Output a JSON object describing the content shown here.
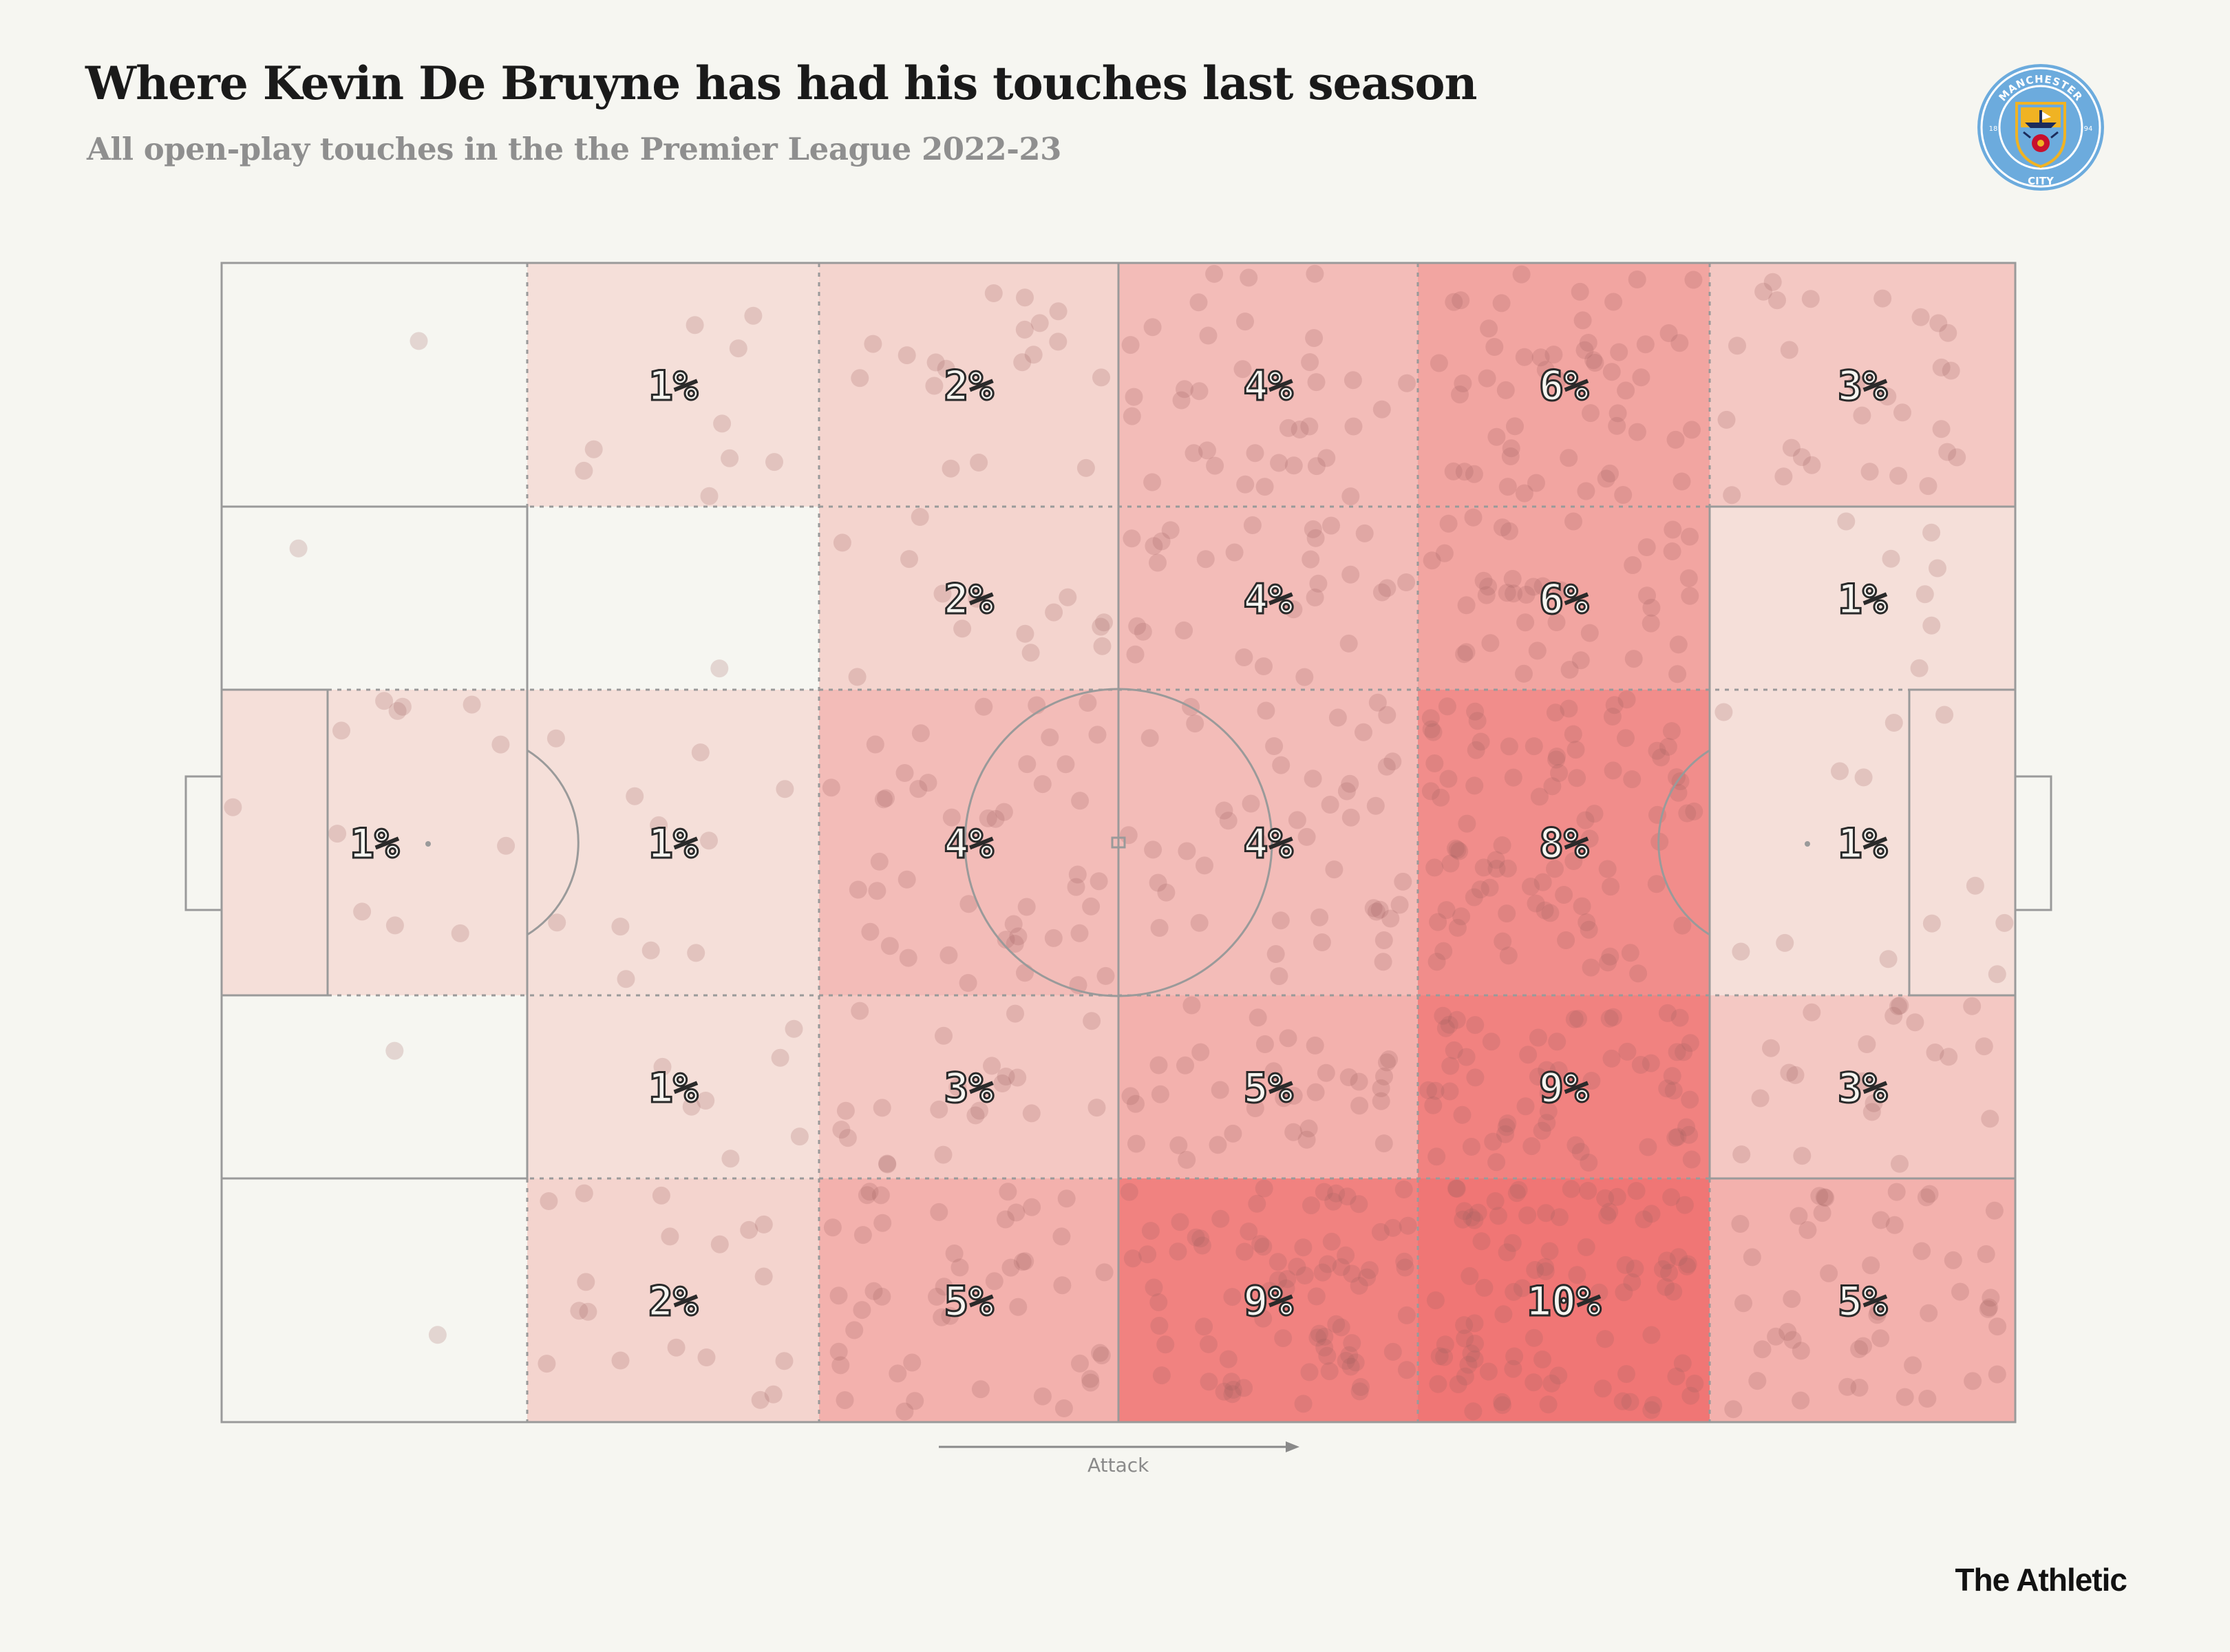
{
  "header": {
    "title": "Where Kevin De Bruyne has had his touches last season",
    "subtitle": "All open-play touches in the the Premier League 2022-23"
  },
  "crest": {
    "top_text": "MANCHESTER",
    "bottom_text": "CITY",
    "year_left": "18",
    "year_right": "94",
    "colors": {
      "ring": "#6cabdd",
      "navy": "#1c2c5b",
      "gold": "#f0b323",
      "red": "#c8102e"
    }
  },
  "attack_label": "Attack",
  "brand": "The Athletic",
  "colors": {
    "background": "#f6f6f1",
    "zone_low": "#f5ebe4",
    "zone_high": "#f07675",
    "dots": "#a06060",
    "lines": "#9a9a9a"
  },
  "chart_data": {
    "type": "heatmap",
    "description_units": "percent of open-play touches per pitch zone",
    "columns": 6,
    "rows": 5,
    "zones": [
      {
        "col": 0,
        "row": 0,
        "value": 0,
        "label": ""
      },
      {
        "col": 1,
        "row": 0,
        "value": 1,
        "label": "1%"
      },
      {
        "col": 2,
        "row": 0,
        "value": 2,
        "label": "2%"
      },
      {
        "col": 3,
        "row": 0,
        "value": 4,
        "label": "4%"
      },
      {
        "col": 4,
        "row": 0,
        "value": 6,
        "label": "6%"
      },
      {
        "col": 5,
        "row": 0,
        "value": 3,
        "label": "3%"
      },
      {
        "col": 0,
        "row": 1,
        "value": 0,
        "label": ""
      },
      {
        "col": 1,
        "row": 1,
        "value": 0,
        "label": ""
      },
      {
        "col": 2,
        "row": 1,
        "value": 2,
        "label": "2%"
      },
      {
        "col": 3,
        "row": 1,
        "value": 4,
        "label": "4%"
      },
      {
        "col": 4,
        "row": 1,
        "value": 6,
        "label": "6%"
      },
      {
        "col": 5,
        "row": 1,
        "value": 1,
        "label": "1%"
      },
      {
        "col": 0,
        "row": 2,
        "value": 1,
        "label": "1%"
      },
      {
        "col": 1,
        "row": 2,
        "value": 1,
        "label": "1%"
      },
      {
        "col": 2,
        "row": 2,
        "value": 4,
        "label": "4%"
      },
      {
        "col": 3,
        "row": 2,
        "value": 4,
        "label": "4%"
      },
      {
        "col": 4,
        "row": 2,
        "value": 8,
        "label": "8%"
      },
      {
        "col": 5,
        "row": 2,
        "value": 1,
        "label": "1%"
      },
      {
        "col": 0,
        "row": 3,
        "value": 0,
        "label": ""
      },
      {
        "col": 1,
        "row": 3,
        "value": 1,
        "label": "1%"
      },
      {
        "col": 2,
        "row": 3,
        "value": 3,
        "label": "3%"
      },
      {
        "col": 3,
        "row": 3,
        "value": 5,
        "label": "5%"
      },
      {
        "col": 4,
        "row": 3,
        "value": 9,
        "label": "9%"
      },
      {
        "col": 5,
        "row": 3,
        "value": 3,
        "label": "3%"
      },
      {
        "col": 0,
        "row": 4,
        "value": 0,
        "label": ""
      },
      {
        "col": 1,
        "row": 4,
        "value": 2,
        "label": "2%"
      },
      {
        "col": 2,
        "row": 4,
        "value": 5,
        "label": "5%"
      },
      {
        "col": 3,
        "row": 4,
        "value": 9,
        "label": "9%"
      },
      {
        "col": 4,
        "row": 4,
        "value": 10,
        "label": "10%"
      },
      {
        "col": 5,
        "row": 4,
        "value": 5,
        "label": "5%"
      }
    ],
    "grid": true,
    "legend": "none"
  }
}
